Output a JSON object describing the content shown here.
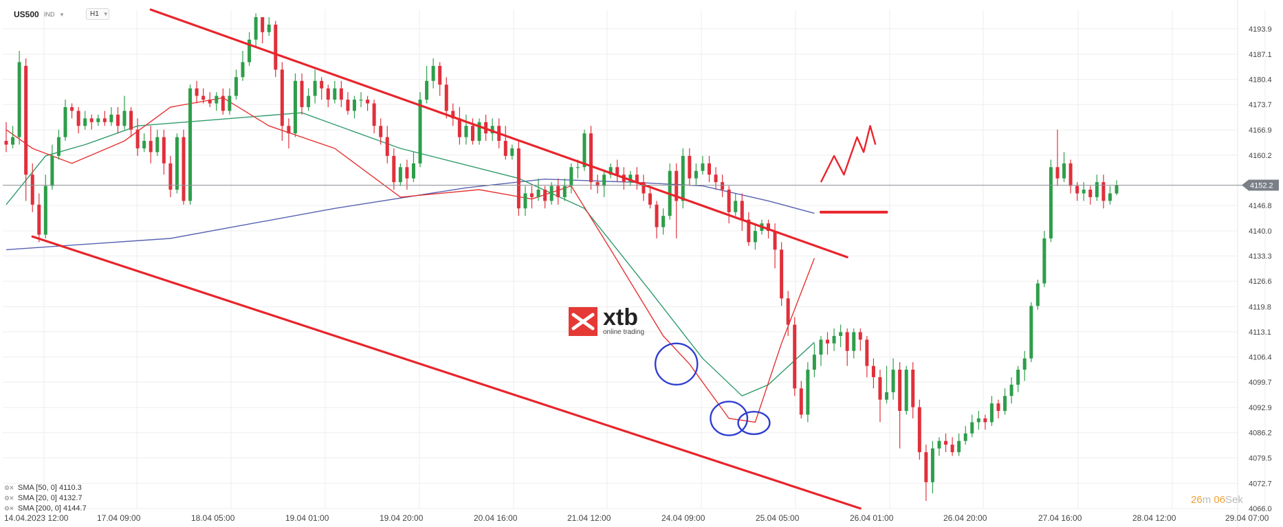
{
  "header": {
    "symbol": "US500",
    "market": "IND",
    "timeframe": "H1"
  },
  "logo": {
    "name": "xtb",
    "tagline": "online trading"
  },
  "timer": {
    "minutes": "26",
    "min_unit": "m",
    "seconds": "06",
    "sec_unit": "Sek"
  },
  "legend": [
    {
      "label": "SMA [50, 0]",
      "value": "4110.3"
    },
    {
      "label": "SMA [20, 0]",
      "value": "4132.7"
    },
    {
      "label": "SMA [200, 0]",
      "value": "4144.7"
    }
  ],
  "colors": {
    "bull": "#2e9e4a",
    "bear": "#e0303b",
    "sma50": "#2e9a6a",
    "sma20": "#e63232",
    "sma200": "#5560b0",
    "channel": "#e8242b",
    "circle": "#2f3fd0",
    "price_tag": "#7a7f87",
    "grid": "#eeeeee"
  },
  "chart_data": {
    "type": "candlestick",
    "ylim": [
      4066.0,
      4199.0
    ],
    "y_ticks": [
      "4193.9",
      "4187.1",
      "4180.4",
      "4173.7",
      "4166.9",
      "4160.2",
      "4146.8",
      "4140.0",
      "4133.3",
      "4126.6",
      "4119.8",
      "4113.1",
      "4106.4",
      "4099.7",
      "4092.9",
      "4086.2",
      "4079.5",
      "4072.7",
      "4066.0"
    ],
    "x_ticks": [
      "14.04.2023  12:00",
      "17.04  09:00",
      "18.04  05:00",
      "19.04  01:00",
      "19.04  20:00",
      "20.04  16:00",
      "21.04  12:00",
      "24.04  09:00",
      "25.04  05:00",
      "26.04  01:00",
      "26.04  20:00",
      "27.04  16:00",
      "28.04  12:00",
      "29.04  07:00"
    ],
    "last_price": "4152.2",
    "channel": {
      "upper": [
        [
          22,
          4199.0
        ],
        [
          128,
          4133.0
        ]
      ],
      "lower": [
        [
          4,
          4138.5
        ],
        [
          130,
          4066.0
        ]
      ]
    },
    "target_zone": [
      [
        124,
        4145.0
      ],
      [
        134,
        4145.0
      ]
    ],
    "projection": [
      [
        124,
        4153.0
      ],
      [
        126,
        4160.0
      ],
      [
        127.5,
        4155.0
      ],
      [
        129.5,
        4165.0
      ],
      [
        130.5,
        4161.0
      ],
      [
        131.5,
        4168.0
      ],
      [
        132.3,
        4163.0
      ]
    ],
    "circles": [
      [
        102,
        4104.5,
        3.2,
        5.5
      ],
      [
        110,
        4090.0,
        2.8,
        4.5
      ],
      [
        113.8,
        4088.8,
        2.4,
        3.0
      ]
    ],
    "sma": {
      "sma200": [
        [
          0,
          4135.0
        ],
        [
          25,
          4138.0
        ],
        [
          50,
          4146.0
        ],
        [
          70,
          4151.5
        ],
        [
          82,
          4153.8
        ],
        [
          95,
          4153.0
        ],
        [
          106,
          4152.0
        ],
        [
          116,
          4148.0
        ],
        [
          123,
          4144.7
        ]
      ],
      "sma50": [
        [
          0,
          4147.0
        ],
        [
          6,
          4160.0
        ],
        [
          12,
          4163.0
        ],
        [
          20,
          4168.0
        ],
        [
          45,
          4171.5
        ],
        [
          60,
          4162.0
        ],
        [
          78,
          4154.0
        ],
        [
          88,
          4146.0
        ],
        [
          98,
          4124.0
        ],
        [
          106,
          4106.0
        ],
        [
          112,
          4096.0
        ],
        [
          116,
          4099.0
        ],
        [
          123,
          4110.3
        ]
      ],
      "sma20": [
        [
          0,
          4167.0
        ],
        [
          4,
          4162.0
        ],
        [
          10,
          4158.0
        ],
        [
          18,
          4164.0
        ],
        [
          25,
          4173.0
        ],
        [
          33,
          4175.5
        ],
        [
          40,
          4168.0
        ],
        [
          50,
          4162.0
        ],
        [
          60,
          4149.0
        ],
        [
          72,
          4151.0
        ],
        [
          80,
          4148.5
        ],
        [
          86,
          4152.0
        ],
        [
          92,
          4135.0
        ],
        [
          100,
          4112.0
        ],
        [
          104,
          4104.5
        ],
        [
          110,
          4090.0
        ],
        [
          114,
          4089.0
        ],
        [
          118,
          4110.0
        ],
        [
          123,
          4132.7
        ]
      ]
    },
    "candles": [
      [
        4164.0,
        4163.0,
        4169.0,
        4161.0
      ],
      [
        4163.0,
        4165.0,
        4168.0,
        4162.0
      ],
      [
        4165.0,
        4185.0,
        4188.0,
        4163.0
      ],
      [
        4184.0,
        4155.0,
        4186.0,
        4148.0
      ],
      [
        4155.0,
        4147.0,
        4158.0,
        4145.0
      ],
      [
        4147.0,
        4139.0,
        4150.0,
        4137.0
      ],
      [
        4139.0,
        4152.0,
        4155.0,
        4138.0
      ],
      [
        4152.0,
        4160.0,
        4163.0,
        4151.0
      ],
      [
        4160.0,
        4165.0,
        4167.0,
        4159.0
      ],
      [
        4165.0,
        4173.0,
        4175.0,
        4164.0
      ],
      [
        4173.0,
        4172.0,
        4174.0,
        4170.0
      ],
      [
        4172.0,
        4168.0,
        4173.0,
        4166.0
      ],
      [
        4168.0,
        4170.0,
        4172.0,
        4167.0
      ],
      [
        4170.0,
        4169.0,
        4171.0,
        4167.0
      ],
      [
        4169.0,
        4170.0,
        4171.0,
        4168.0
      ],
      [
        4170.0,
        4169.0,
        4172.0,
        4168.0
      ],
      [
        4169.0,
        4171.0,
        4173.0,
        4168.0
      ],
      [
        4171.0,
        4168.0,
        4173.0,
        4166.0
      ],
      [
        4168.0,
        4172.0,
        4176.0,
        4167.0
      ],
      [
        4172.0,
        4167.0,
        4173.0,
        4165.0
      ],
      [
        4167.0,
        4162.0,
        4170.0,
        4160.0
      ],
      [
        4162.0,
        4164.0,
        4166.0,
        4161.0
      ],
      [
        4164.0,
        4161.0,
        4168.0,
        4158.0
      ],
      [
        4161.0,
        4165.0,
        4167.0,
        4160.0
      ],
      [
        4165.0,
        4158.0,
        4167.0,
        4155.0
      ],
      [
        4158.0,
        4151.0,
        4160.0,
        4149.0
      ],
      [
        4151.0,
        4165.0,
        4166.0,
        4150.0
      ],
      [
        4165.0,
        4148.0,
        4167.0,
        4147.0
      ],
      [
        4148.0,
        4178.0,
        4179.0,
        4147.0
      ],
      [
        4178.0,
        4176.0,
        4180.0,
        4174.0
      ],
      [
        4176.0,
        4175.0,
        4178.0,
        4174.0
      ],
      [
        4175.0,
        4174.0,
        4177.0,
        4173.0
      ],
      [
        4174.0,
        4176.0,
        4177.0,
        4172.0
      ],
      [
        4176.0,
        4172.0,
        4178.0,
        4171.0
      ],
      [
        4172.0,
        4176.0,
        4178.0,
        4171.0
      ],
      [
        4176.0,
        4181.0,
        4183.0,
        4175.0
      ],
      [
        4181.0,
        4185.0,
        4188.0,
        4180.0
      ],
      [
        4185.0,
        4191.0,
        4193.0,
        4184.0
      ],
      [
        4191.0,
        4197.0,
        4198.0,
        4189.0
      ],
      [
        4197.0,
        4193.0,
        4197.0,
        4190.0
      ],
      [
        4193.0,
        4195.0,
        4197.0,
        4192.0
      ],
      [
        4195.0,
        4183.0,
        4196.0,
        4181.0
      ],
      [
        4183.0,
        4168.0,
        4185.0,
        4164.0
      ],
      [
        4168.0,
        4166.0,
        4170.0,
        4162.0
      ],
      [
        4166.0,
        4180.0,
        4182.0,
        4165.0
      ],
      [
        4180.0,
        4173.0,
        4182.0,
        4171.0
      ],
      [
        4173.0,
        4176.0,
        4178.0,
        4172.0
      ],
      [
        4176.0,
        4180.0,
        4183.0,
        4174.0
      ],
      [
        4180.0,
        4178.0,
        4181.0,
        4175.0
      ],
      [
        4178.0,
        4175.0,
        4179.0,
        4173.0
      ],
      [
        4175.0,
        4178.0,
        4180.0,
        4174.0
      ],
      [
        4178.0,
        4175.0,
        4180.0,
        4173.0
      ],
      [
        4175.0,
        4172.0,
        4177.0,
        4171.0
      ],
      [
        4172.0,
        4175.0,
        4176.0,
        4170.0
      ],
      [
        4175.0,
        4175.0,
        4177.0,
        4173.0
      ],
      [
        4175.0,
        4174.0,
        4176.0,
        4172.0
      ],
      [
        4174.0,
        4168.0,
        4175.0,
        4166.0
      ],
      [
        4168.0,
        4165.0,
        4170.0,
        4163.0
      ],
      [
        4165.0,
        4160.0,
        4168.0,
        4158.0
      ],
      [
        4160.0,
        4153.0,
        4162.0,
        4151.0
      ],
      [
        4153.0,
        4157.0,
        4158.0,
        4152.0
      ],
      [
        4157.0,
        4154.0,
        4159.0,
        4151.0
      ],
      [
        4154.0,
        4158.0,
        4161.0,
        4153.0
      ],
      [
        4158.0,
        4175.0,
        4177.0,
        4157.0
      ],
      [
        4175.0,
        4180.0,
        4184.0,
        4174.0
      ],
      [
        4180.0,
        4184.0,
        4186.0,
        4178.0
      ],
      [
        4184.0,
        4179.0,
        4185.0,
        4176.0
      ],
      [
        4179.0,
        4172.0,
        4181.0,
        4170.0
      ],
      [
        4172.0,
        4170.0,
        4174.0,
        4168.0
      ],
      [
        4170.0,
        4165.0,
        4173.0,
        4163.0
      ],
      [
        4165.0,
        4168.0,
        4171.0,
        4163.0
      ],
      [
        4168.0,
        4164.0,
        4170.0,
        4163.0
      ],
      [
        4164.0,
        4169.0,
        4170.0,
        4163.0
      ],
      [
        4169.0,
        4166.0,
        4171.0,
        4164.0
      ],
      [
        4166.0,
        4168.0,
        4170.0,
        4164.0
      ],
      [
        4168.0,
        4164.0,
        4170.0,
        4162.0
      ],
      [
        4164.0,
        4160.0,
        4168.0,
        4159.0
      ],
      [
        4160.0,
        4162.0,
        4163.0,
        4159.0
      ],
      [
        4162.0,
        4146.0,
        4164.0,
        4144.0
      ],
      [
        4146.0,
        4150.0,
        4152.0,
        4144.0
      ],
      [
        4150.0,
        4149.0,
        4152.0,
        4146.0
      ],
      [
        4149.0,
        4151.0,
        4154.0,
        4148.0
      ],
      [
        4151.0,
        4148.0,
        4152.0,
        4146.0
      ],
      [
        4148.0,
        4152.0,
        4153.0,
        4147.0
      ],
      [
        4152.0,
        4149.0,
        4154.0,
        4147.0
      ],
      [
        4149.0,
        4152.0,
        4154.0,
        4148.0
      ],
      [
        4152.0,
        4157.0,
        4158.0,
        4150.0
      ],
      [
        4157.0,
        4157.0,
        4159.0,
        4154.0
      ],
      [
        4157.0,
        4166.0,
        4167.0,
        4156.0
      ],
      [
        4166.0,
        4153.0,
        4168.0,
        4151.0
      ],
      [
        4153.0,
        4152.0,
        4155.0,
        4150.0
      ],
      [
        4152.0,
        4155.0,
        4156.0,
        4149.0
      ],
      [
        4155.0,
        4157.0,
        4158.0,
        4154.0
      ],
      [
        4157.0,
        4155.0,
        4159.0,
        4153.0
      ],
      [
        4155.0,
        4153.0,
        4157.0,
        4151.0
      ],
      [
        4153.0,
        4155.0,
        4156.0,
        4152.0
      ],
      [
        4155.0,
        4153.0,
        4157.0,
        4151.0
      ],
      [
        4153.0,
        4150.0,
        4155.0,
        4148.0
      ],
      [
        4150.0,
        4147.0,
        4152.0,
        4146.0
      ],
      [
        4147.0,
        4141.0,
        4148.0,
        4138.0
      ],
      [
        4141.0,
        4144.0,
        4146.0,
        4139.0
      ],
      [
        4144.0,
        4156.0,
        4158.0,
        4143.0
      ],
      [
        4156.0,
        4148.0,
        4158.0,
        4138.0
      ],
      [
        4148.0,
        4160.0,
        4162.0,
        4146.0
      ],
      [
        4160.0,
        4154.0,
        4162.0,
        4152.0
      ],
      [
        4154.0,
        4156.0,
        4158.0,
        4152.0
      ],
      [
        4156.0,
        4158.0,
        4160.0,
        4155.0
      ],
      [
        4158.0,
        4155.0,
        4160.0,
        4153.0
      ],
      [
        4155.0,
        4153.0,
        4157.0,
        4151.0
      ],
      [
        4153.0,
        4151.0,
        4155.0,
        4149.0
      ],
      [
        4151.0,
        4145.0,
        4152.0,
        4142.0
      ],
      [
        4145.0,
        4148.0,
        4150.0,
        4144.0
      ],
      [
        4148.0,
        4143.0,
        4150.0,
        4140.0
      ],
      [
        4143.0,
        4137.0,
        4145.0,
        4136.0
      ],
      [
        4137.0,
        4140.0,
        4142.0,
        4135.0
      ],
      [
        4140.0,
        4142.0,
        4143.0,
        4139.0
      ],
      [
        4142.0,
        4140.0,
        4143.0,
        4138.0
      ],
      [
        4140.0,
        4135.0,
        4142.0,
        4130.0
      ],
      [
        4135.0,
        4122.0,
        4137.0,
        4120.0
      ],
      [
        4122.0,
        4115.0,
        4124.0,
        4112.0
      ],
      [
        4115.0,
        4098.0,
        4117.0,
        4096.0
      ],
      [
        4098.0,
        4091.0,
        4100.0,
        4090.0
      ],
      [
        4091.0,
        4103.0,
        4105.0,
        4089.0
      ],
      [
        4103.0,
        4107.0,
        4110.0,
        4101.0
      ],
      [
        4107.0,
        4111.0,
        4112.0,
        4104.0
      ],
      [
        4111.0,
        4110.0,
        4113.0,
        4107.0
      ],
      [
        4110.0,
        4112.0,
        4114.0,
        4108.0
      ],
      [
        4112.0,
        4113.0,
        4115.0,
        4109.0
      ],
      [
        4113.0,
        4108.0,
        4114.0,
        4104.0
      ],
      [
        4108.0,
        4113.0,
        4114.0,
        4106.0
      ],
      [
        4113.0,
        4111.0,
        4114.0,
        4108.0
      ],
      [
        4111.0,
        4104.0,
        4112.0,
        4101.0
      ],
      [
        4104.0,
        4101.0,
        4106.0,
        4098.0
      ],
      [
        4101.0,
        4095.0,
        4103.0,
        4089.0
      ],
      [
        4095.0,
        4097.0,
        4104.0,
        4094.0
      ],
      [
        4097.0,
        4103.0,
        4106.0,
        4095.0
      ],
      [
        4103.0,
        4092.0,
        4105.0,
        4082.0
      ],
      [
        4092.0,
        4103.0,
        4104.0,
        4091.0
      ],
      [
        4103.0,
        4093.0,
        4105.0,
        4090.0
      ],
      [
        4093.0,
        4081.0,
        4095.0,
        4079.0
      ],
      [
        4081.0,
        4073.0,
        4083.0,
        4068.0
      ],
      [
        4073.0,
        4082.0,
        4084.0,
        4070.0
      ],
      [
        4082.0,
        4084.0,
        4085.0,
        4080.0
      ],
      [
        4084.0,
        4083.0,
        4086.0,
        4081.0
      ],
      [
        4083.0,
        4081.0,
        4085.0,
        4080.0
      ],
      [
        4081.0,
        4084.0,
        4086.0,
        4080.0
      ],
      [
        4084.0,
        4086.0,
        4088.0,
        4083.0
      ],
      [
        4086.0,
        4089.0,
        4091.0,
        4085.0
      ],
      [
        4089.0,
        4090.0,
        4092.0,
        4087.0
      ],
      [
        4090.0,
        4089.0,
        4091.0,
        4087.0
      ],
      [
        4089.0,
        4094.0,
        4096.0,
        4088.0
      ],
      [
        4094.0,
        4092.0,
        4095.0,
        4090.0
      ],
      [
        4092.0,
        4096.0,
        4098.0,
        4091.0
      ],
      [
        4096.0,
        4099.0,
        4101.0,
        4094.0
      ],
      [
        4099.0,
        4103.0,
        4104.0,
        4097.0
      ],
      [
        4103.0,
        4106.0,
        4108.0,
        4100.0
      ],
      [
        4106.0,
        4120.0,
        4121.0,
        4105.0
      ],
      [
        4120.0,
        4126.0,
        4127.0,
        4119.0
      ],
      [
        4126.0,
        4138.0,
        4140.0,
        4125.0
      ],
      [
        4138.0,
        4157.0,
        4159.0,
        4137.0
      ],
      [
        4157.0,
        4154.0,
        4167.0,
        4152.0
      ],
      [
        4154.0,
        4158.0,
        4161.0,
        4153.0
      ],
      [
        4158.0,
        4152.0,
        4159.0,
        4150.0
      ],
      [
        4152.0,
        4150.0,
        4153.0,
        4148.0
      ],
      [
        4150.0,
        4151.0,
        4153.0,
        4148.0
      ],
      [
        4151.0,
        4149.0,
        4152.0,
        4147.0
      ],
      [
        4149.0,
        4153.0,
        4155.0,
        4148.0
      ],
      [
        4153.0,
        4148.0,
        4155.0,
        4146.0
      ],
      [
        4148.0,
        4150.0,
        4152.0,
        4147.0
      ],
      [
        4150.0,
        4152.2,
        4153.5,
        4149.5
      ]
    ]
  }
}
